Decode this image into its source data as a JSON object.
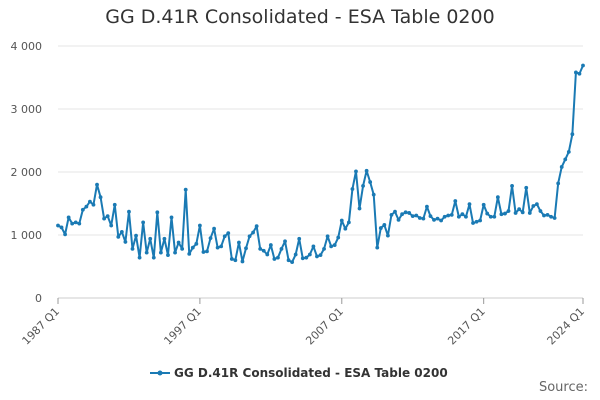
{
  "chart_data": {
    "type": "line",
    "title": "GG D.41R Consolidated - ESA Table 0200",
    "xlabel": "",
    "ylabel": "",
    "ylim": [
      0,
      4000
    ],
    "yticks": [
      0,
      1000,
      2000,
      3000,
      4000
    ],
    "ytick_labels": [
      "0",
      "1 000",
      "2 000",
      "3 000",
      "4 000"
    ],
    "xtick_labels": [
      "1987 Q1",
      "1997 Q1",
      "2007 Q1",
      "2017 Q1",
      "2024 Q1"
    ],
    "xtick_index": [
      0,
      40,
      80,
      120,
      148
    ],
    "grid": "horizontal",
    "legend_position": "bottom",
    "series": [
      {
        "name": "GG D.41R Consolidated - ESA Table 0200",
        "color": "#1a7ab4",
        "values": [
          1150,
          1120,
          1010,
          1280,
          1180,
          1200,
          1180,
          1400,
          1450,
          1530,
          1480,
          1800,
          1600,
          1260,
          1300,
          1150,
          1480,
          970,
          1050,
          890,
          1370,
          780,
          990,
          640,
          1200,
          720,
          940,
          640,
          1360,
          720,
          940,
          680,
          1280,
          720,
          880,
          780,
          1720,
          700,
          800,
          860,
          1150,
          730,
          740,
          950,
          1100,
          800,
          820,
          980,
          1030,
          620,
          600,
          880,
          580,
          790,
          980,
          1040,
          1140,
          780,
          750,
          690,
          840,
          620,
          640,
          780,
          900,
          600,
          570,
          690,
          940,
          630,
          640,
          690,
          820,
          660,
          680,
          780,
          980,
          820,
          840,
          960,
          1230,
          1100,
          1200,
          1730,
          2010,
          1420,
          1780,
          2020,
          1840,
          1640,
          800,
          1110,
          1160,
          990,
          1320,
          1370,
          1240,
          1330,
          1360,
          1350,
          1300,
          1310,
          1270,
          1260,
          1450,
          1300,
          1240,
          1260,
          1230,
          1290,
          1310,
          1320,
          1540,
          1290,
          1330,
          1290,
          1490,
          1190,
          1210,
          1230,
          1480,
          1340,
          1290,
          1290,
          1600,
          1330,
          1340,
          1380,
          1780,
          1350,
          1410,
          1360,
          1750,
          1350,
          1460,
          1490,
          1380,
          1310,
          1320,
          1290,
          1270,
          1820,
          2080,
          2200,
          2320,
          2600,
          3580,
          3560,
          3690
        ]
      }
    ]
  },
  "legend": {
    "label": "GG D.41R Consolidated - ESA Table 0200"
  },
  "footer": {
    "source": "Source:"
  }
}
